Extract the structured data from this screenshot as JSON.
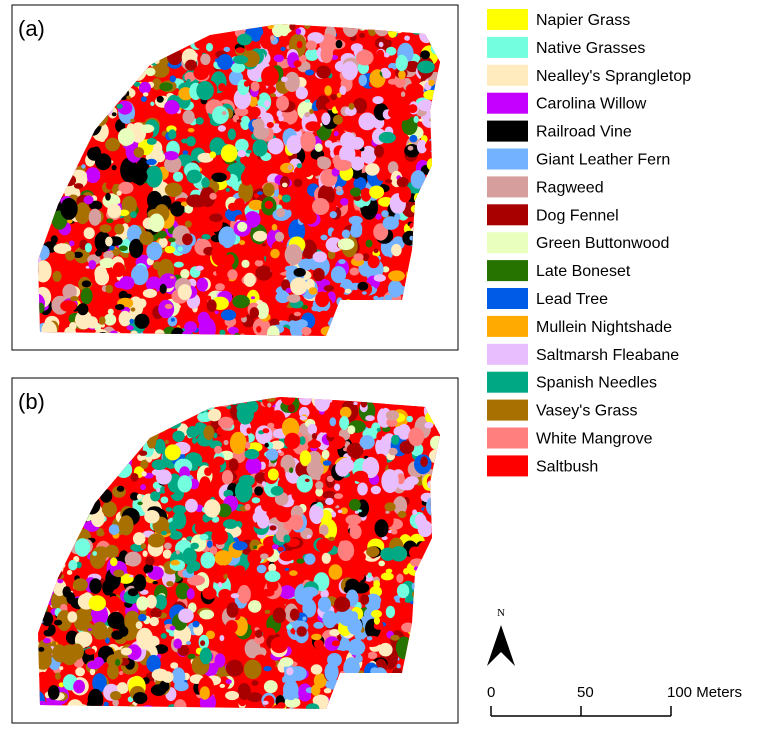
{
  "panels": [
    {
      "label": "(a)"
    },
    {
      "label": "(b)"
    }
  ],
  "legend": {
    "items": [
      {
        "label": "Napier Grass",
        "color": "#ffff00"
      },
      {
        "label": "Native Grasses",
        "color": "#73ffdf"
      },
      {
        "label": "Nealley's Sprangletop",
        "color": "#ffebbe"
      },
      {
        "label": "Carolina Willow",
        "color": "#c500ff"
      },
      {
        "label": "Railroad Vine",
        "color": "#000000"
      },
      {
        "label": "Giant Leather Fern",
        "color": "#73b2ff"
      },
      {
        "label": "Ragweed",
        "color": "#d79e9e"
      },
      {
        "label": "Dog Fennel",
        "color": "#a80000"
      },
      {
        "label": "Green Buttonwood",
        "color": "#e9ffbe"
      },
      {
        "label": "Late Boneset",
        "color": "#267300"
      },
      {
        "label": "Lead Tree",
        "color": "#005ce6"
      },
      {
        "label": "Mullein Nightshade",
        "color": "#ffaa00"
      },
      {
        "label": "Saltmarsh Fleabane",
        "color": "#e8beff"
      },
      {
        "label": "Spanish Needles",
        "color": "#00a884"
      },
      {
        "label": "Vasey's Grass",
        "color": "#a87000"
      },
      {
        "label": "White Mangrove",
        "color": "#ff7f7f"
      },
      {
        "label": "Saltbush",
        "color": "#ff0000"
      }
    ]
  },
  "north_arrow": {
    "label": "N"
  },
  "scale_bar": {
    "lim": [
      0,
      100
    ],
    "ticks": [
      0,
      50,
      {
        "value": 100,
        "label": "100 Meters"
      }
    ]
  }
}
